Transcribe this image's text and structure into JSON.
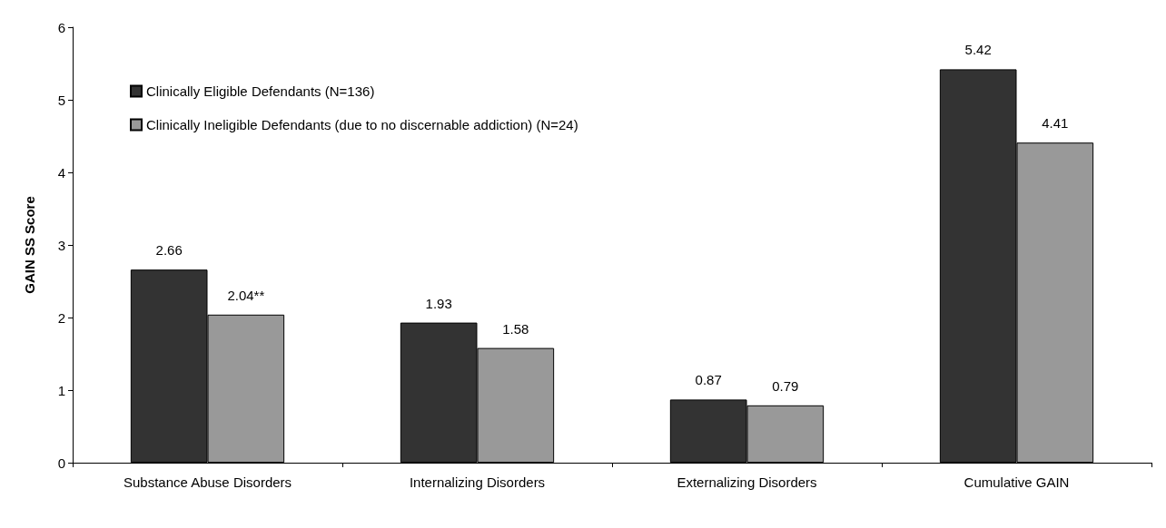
{
  "chart_data": {
    "type": "bar",
    "ylabel": "GAIN SS Score",
    "categories": [
      "Substance Abuse Disorders",
      "Internalizing Disorders",
      "Externalizing Disorders",
      "Cumulative GAIN"
    ],
    "series": [
      {
        "name": "Clinically Eligible Defendants (N=136)",
        "color": "#333333",
        "values": [
          2.66,
          1.93,
          0.87,
          5.42
        ],
        "value_labels": [
          "2.66",
          "1.93",
          "0.87",
          "5.42"
        ]
      },
      {
        "name": "Clinically Ineligible Defendants (due to no discernable addiction) (N=24)",
        "color": "#999999",
        "values": [
          2.04,
          1.58,
          0.79,
          4.41
        ],
        "value_labels": [
          "2.04**",
          "1.58",
          "0.79",
          "4.41"
        ]
      }
    ],
    "ylim": [
      0,
      6
    ],
    "yticks": [
      0,
      1,
      2,
      3,
      4,
      5,
      6
    ],
    "grid": false,
    "legend": "top left"
  }
}
